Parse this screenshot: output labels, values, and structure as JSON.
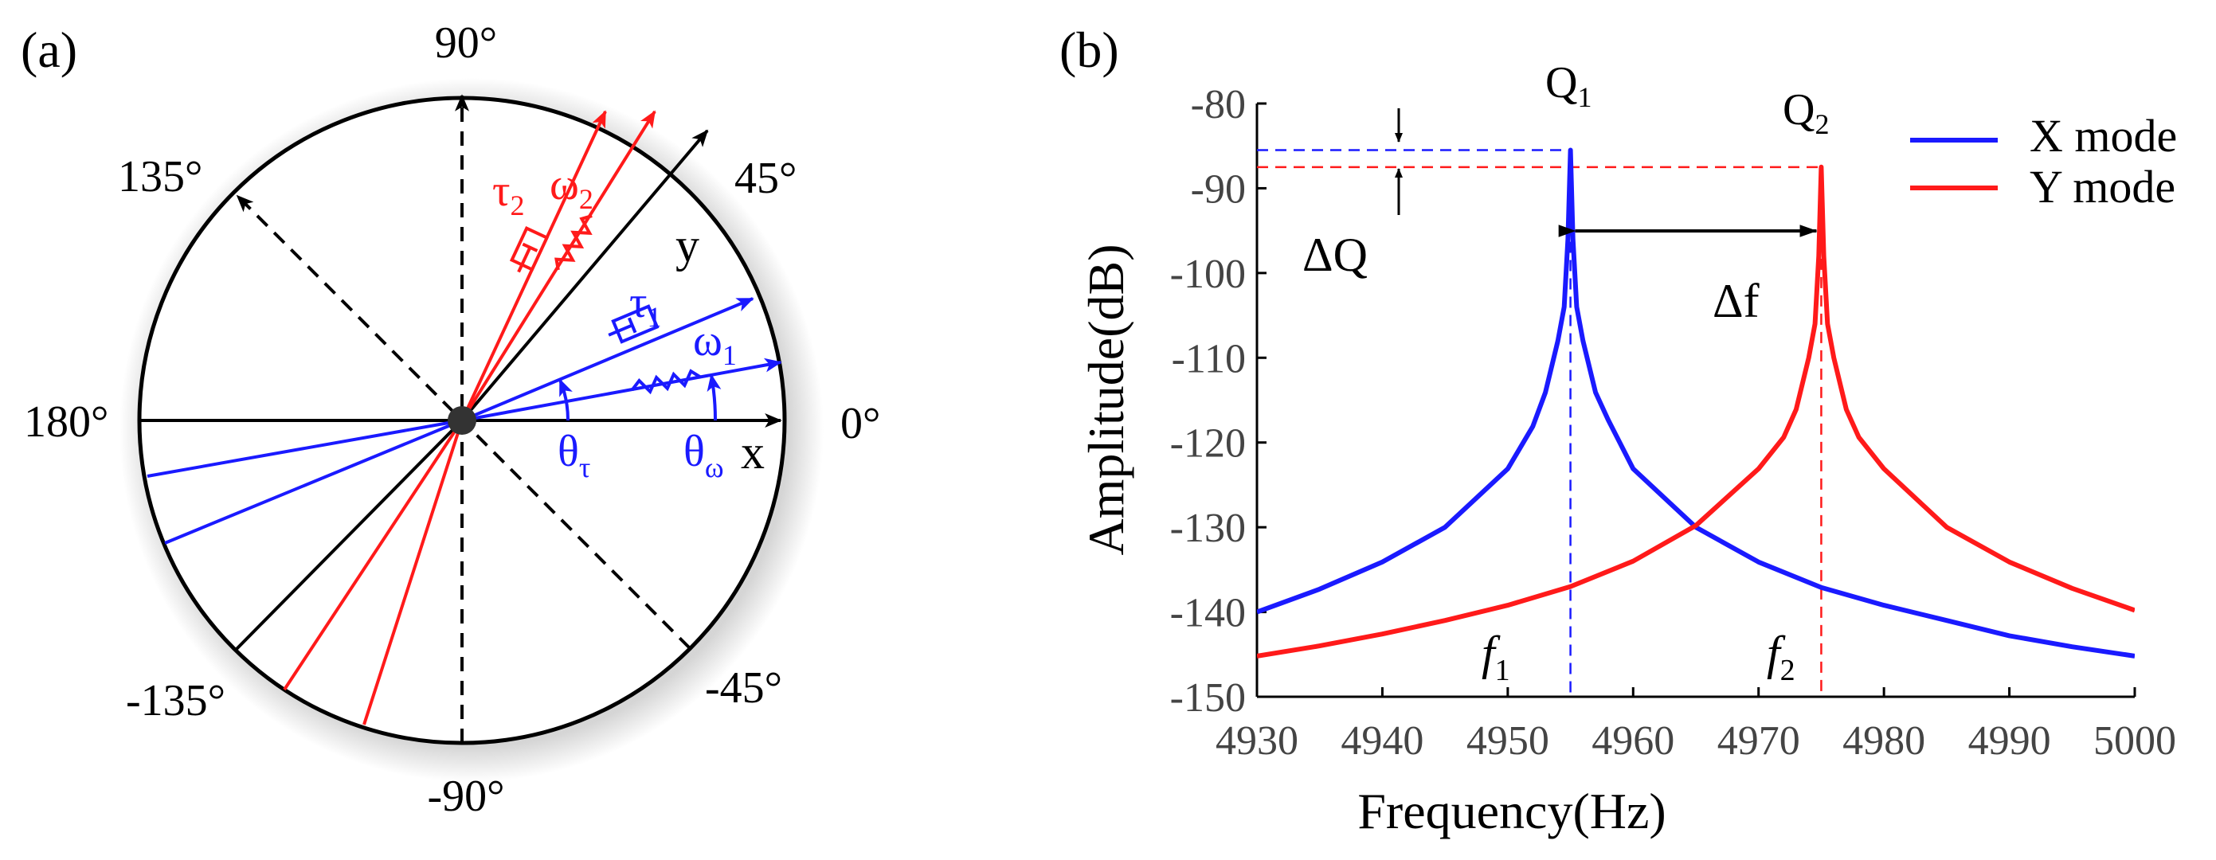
{
  "panel_a": {
    "label": "(a)",
    "angles": {
      "deg_90": "90°",
      "deg_45": "45°",
      "deg_135": "135°",
      "deg_180": "180°",
      "deg_0": "0°",
      "deg_m45": "-45°",
      "deg_m90": "-90°",
      "deg_m135": "-135°"
    },
    "axes": {
      "x": "x",
      "y": "y"
    },
    "symbols": {
      "tau1": "τ",
      "tau1_sub": "1",
      "omega1": "ω",
      "omega1_sub": "1",
      "tau2": "τ",
      "tau2_sub": "2",
      "omega2": "ω",
      "omega2_sub": "2",
      "theta_tau": "θ",
      "theta_tau_sub": "τ",
      "theta_omega": "θ",
      "theta_omega_sub": "ω"
    },
    "colors": {
      "blue": "#1a1aff",
      "red": "#ff1a1a",
      "black": "#000000"
    }
  },
  "panel_b": {
    "label": "(b)",
    "legend": {
      "x_mode": "X mode",
      "y_mode": "Y mode"
    },
    "annotations": {
      "q1": "Q",
      "q1_sub": "1",
      "q2": "Q",
      "q2_sub": "2",
      "delta_q": "ΔQ",
      "delta_f": "Δf",
      "f1": "f",
      "f1_sub": "1",
      "f2": "f",
      "f2_sub": "2"
    }
  },
  "chart_data": {
    "type": "line",
    "xlabel": "Frequency(Hz)",
    "ylabel": "Amplitude(dB)",
    "xlim": [
      4930,
      5000
    ],
    "ylim": [
      -150,
      -80
    ],
    "xticks": [
      4930,
      4940,
      4950,
      4960,
      4970,
      4980,
      4990,
      5000
    ],
    "yticks": [
      -80,
      -90,
      -100,
      -110,
      -120,
      -130,
      -140,
      -150
    ],
    "series": [
      {
        "name": "X mode",
        "color": "#1a1aff",
        "x": [
          4930,
          4935,
          4940,
          4945,
          4950,
          4952,
          4953,
          4954,
          4954.5,
          4954.8,
          4955,
          4955.2,
          4955.5,
          4956,
          4957,
          4958,
          4960,
          4965,
          4970,
          4975,
          4980,
          4985,
          4990,
          4995,
          5000
        ],
        "y": [
          -140,
          -137.3,
          -134.1,
          -130.0,
          -123.1,
          -118.1,
          -114.1,
          -108.0,
          -104.0,
          -96.0,
          -85.5,
          -96.0,
          -104.0,
          -108.0,
          -114.1,
          -117.3,
          -123.1,
          -130.0,
          -134.1,
          -137.1,
          -139.2,
          -141.0,
          -142.8,
          -144.1,
          -145.2
        ]
      },
      {
        "name": "Y mode",
        "color": "#ff1a1a",
        "x": [
          4930,
          4935,
          4940,
          4945,
          4950,
          4955,
          4960,
          4965,
          4970,
          4972,
          4973,
          4974,
          4974.5,
          4974.8,
          4975,
          4975.2,
          4975.5,
          4976,
          4977,
          4978,
          4980,
          4985,
          4990,
          4995,
          5000
        ],
        "y": [
          -145.2,
          -144.0,
          -142.6,
          -141.0,
          -139.2,
          -137.0,
          -134.0,
          -129.8,
          -123.1,
          -119.4,
          -116.1,
          -110.0,
          -106.0,
          -98.0,
          -87.5,
          -98.0,
          -106.0,
          -110.0,
          -116.1,
          -119.4,
          -123.1,
          -130.0,
          -134.1,
          -137.2,
          -139.8
        ]
      }
    ]
  }
}
